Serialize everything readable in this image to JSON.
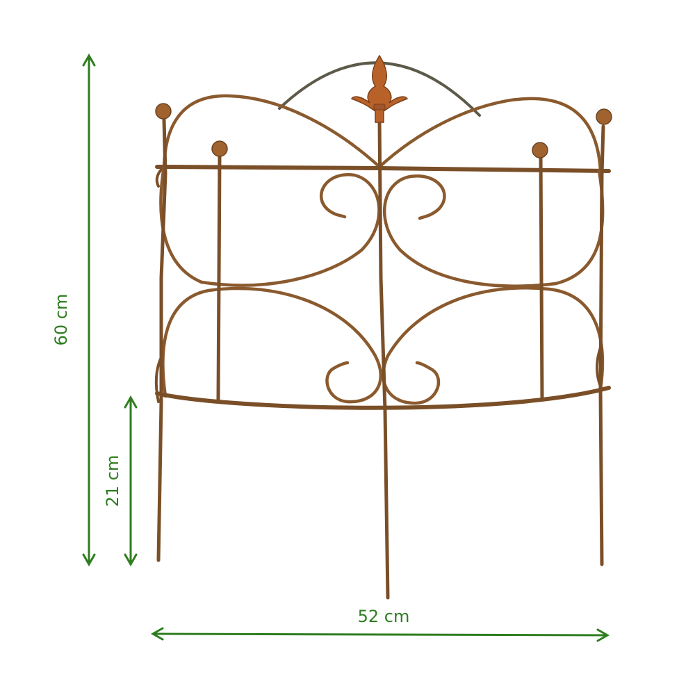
{
  "product": {
    "subject": "rusty metal garden fence panel with fleur-de-lis finial",
    "colors": {
      "metal": "#8a5a2e",
      "metal_dark": "#6b4322",
      "metal_light": "#b8733a",
      "finial": "#b8622a",
      "arch": "#5e5a4a",
      "measure": "#2e7d1f",
      "background": "#ffffff"
    }
  },
  "dimensions": {
    "total_height": {
      "label": "60 cm",
      "value": 60,
      "unit": "cm"
    },
    "stake_depth": {
      "label": "21 cm",
      "value": 21,
      "unit": "cm"
    },
    "width": {
      "label": "52 cm",
      "value": 52,
      "unit": "cm"
    }
  }
}
